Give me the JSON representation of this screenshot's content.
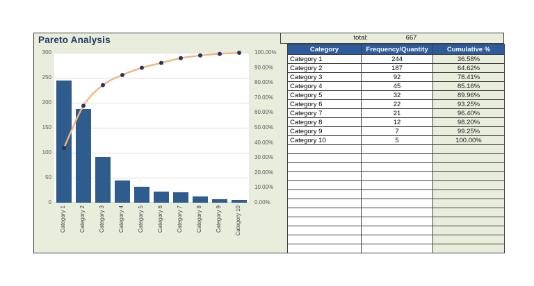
{
  "panel": {
    "title": "Pareto Analysis"
  },
  "summary": {
    "total_label": "total:",
    "total_value": "667"
  },
  "table": {
    "headers": [
      "Category",
      "Frequency/Quantity",
      "Cumulative %"
    ],
    "rows": [
      {
        "category": "Category 1",
        "frequency": "244",
        "cumulative": "36.58%"
      },
      {
        "category": "Category 2",
        "frequency": "187",
        "cumulative": "64.62%"
      },
      {
        "category": "Category 3",
        "frequency": "92",
        "cumulative": "78.41%"
      },
      {
        "category": "Category 4",
        "frequency": "45",
        "cumulative": "85.16%"
      },
      {
        "category": "Category 5",
        "frequency": "32",
        "cumulative": "89.96%"
      },
      {
        "category": "Category 6",
        "frequency": "22",
        "cumulative": "93.25%"
      },
      {
        "category": "Category 7",
        "frequency": "21",
        "cumulative": "96.40%"
      },
      {
        "category": "Category 8",
        "frequency": "12",
        "cumulative": "98.20%"
      },
      {
        "category": "Category 9",
        "frequency": "7",
        "cumulative": "99.25%"
      },
      {
        "category": "Category 10",
        "frequency": "5",
        "cumulative": "100.00%"
      }
    ],
    "empty_rows": 12
  },
  "chart_data": {
    "type": "bar",
    "subtype": "pareto (bar + cumulative line)",
    "title": "Pareto Analysis",
    "categories": [
      "Category 1",
      "Category 2",
      "Category 3",
      "Category 4",
      "Category 5",
      "Category 6",
      "Category 7",
      "Category 8",
      "Category 9",
      "Category 10"
    ],
    "series": [
      {
        "name": "Frequency/Quantity",
        "type": "bar",
        "axis": "left",
        "values": [
          244,
          187,
          92,
          45,
          32,
          22,
          21,
          12,
          7,
          5
        ]
      },
      {
        "name": "Cumulative %",
        "type": "line",
        "axis": "right",
        "values": [
          36.58,
          64.62,
          78.41,
          85.16,
          89.96,
          93.25,
          96.4,
          98.2,
          99.25,
          100.0
        ]
      }
    ],
    "left_axis": {
      "ticks": [
        "300",
        "250",
        "200",
        "150",
        "100",
        "50",
        "0"
      ],
      "range": [
        0,
        300
      ]
    },
    "right_axis": {
      "ticks": [
        "100.00%",
        "90.00%",
        "80.00%",
        "70.00%",
        "60.00%",
        "50.00%",
        "40.00%",
        "30.00%",
        "20.00%",
        "10.00%",
        "0.00%"
      ],
      "range": [
        0,
        100
      ]
    },
    "grid": "horizontal",
    "legend": "none",
    "colors": {
      "bar": "#2E5C8C",
      "line": "#F2B57F",
      "marker": "#2D3160",
      "panel_bg": "#E9EDDB",
      "header_bg": "#2E5B9B",
      "title": "#1F3864"
    }
  }
}
